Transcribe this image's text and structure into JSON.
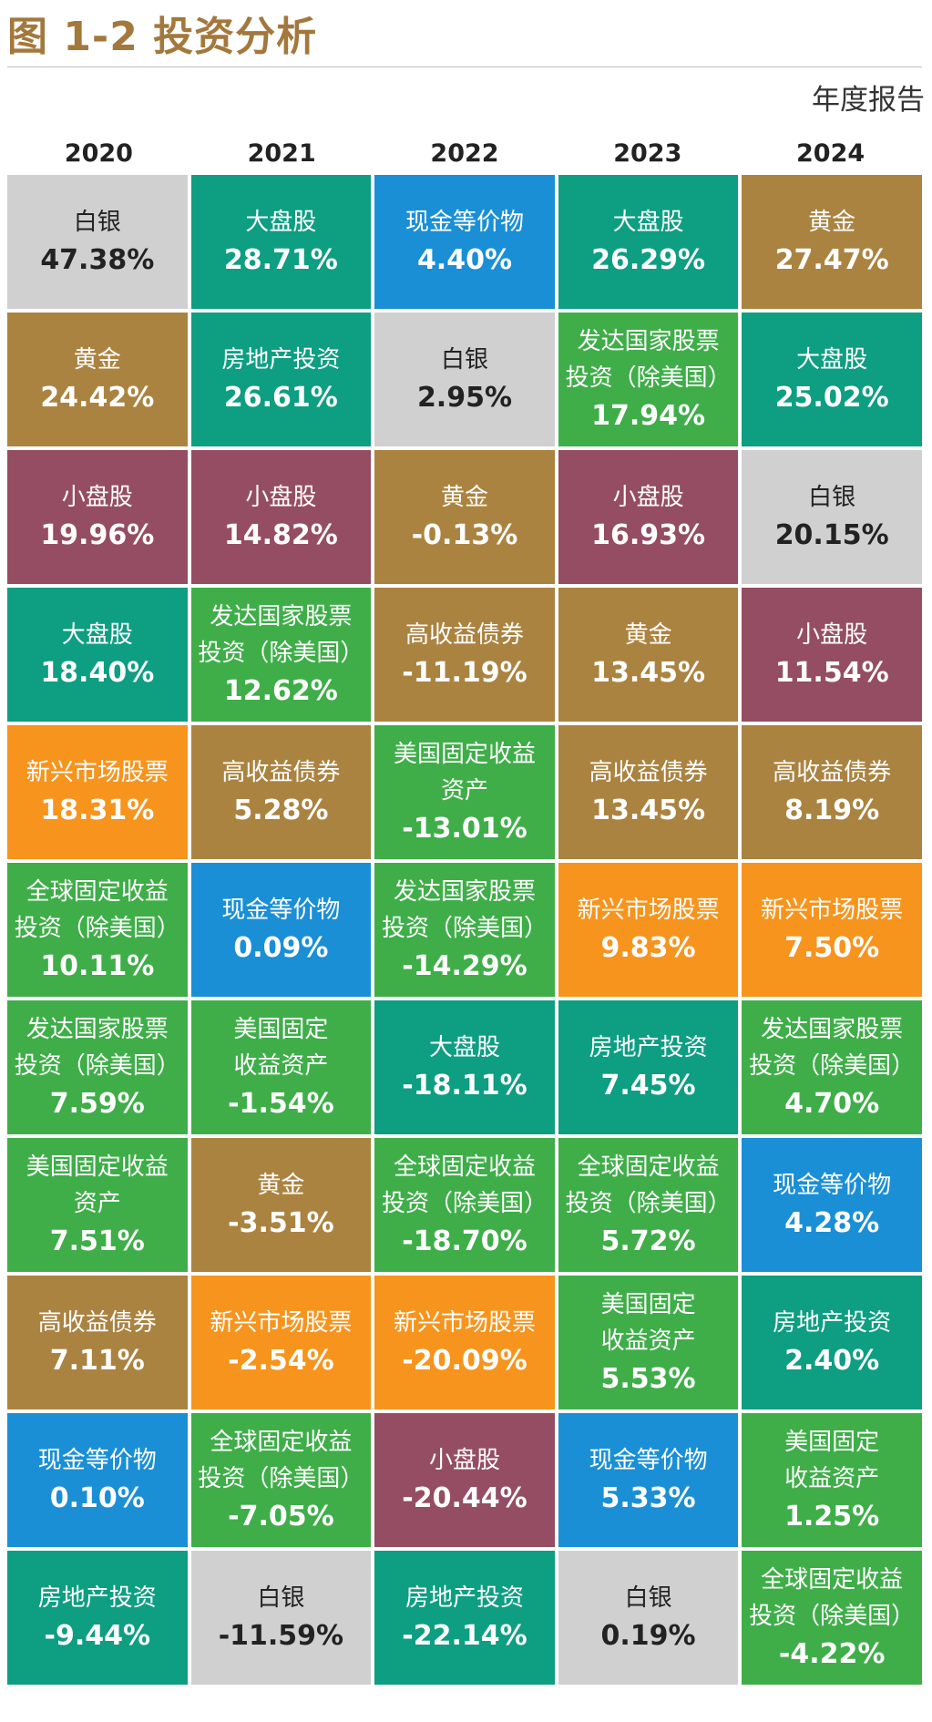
{
  "title": "图 1-2  投资分析",
  "subtitle": "年度报告",
  "colors": {
    "白银": "#d0d0d0",
    "大盘股": "#0e9e82",
    "现金等价物": "#1a8fd6",
    "黄金": "#ab8341",
    "房地产投资": "#0e9e82",
    "发达国家股票投资（除美国）": "#3fae49",
    "小盘股": "#954d64",
    "高收益债券": "#ab8341",
    "新兴市场股票": "#f7941d",
    "美国固定收益资产": "#3fae49",
    "全球固定收益投资（除美国）": "#3fae49"
  },
  "chart_data": {
    "type": "table",
    "columns": [
      {
        "year": "2020",
        "cells": [
          {
            "label": "白银",
            "category": "白银",
            "value": "47.38%"
          },
          {
            "label": "黄金",
            "category": "黄金",
            "value": "24.42%"
          },
          {
            "label": "小盘股",
            "category": "小盘股",
            "value": "19.96%"
          },
          {
            "label": "大盘股",
            "category": "大盘股",
            "value": "18.40%"
          },
          {
            "label": "新兴市场股票",
            "category": "新兴市场股票",
            "value": "18.31%"
          },
          {
            "label": "全球固定收益\n投资（除美国）",
            "category": "全球固定收益投资（除美国）",
            "value": "10.11%"
          },
          {
            "label": "发达国家股票\n投资（除美国）",
            "category": "发达国家股票投资（除美国）",
            "value": "7.59%"
          },
          {
            "label": "美国固定收益\n资产",
            "category": "美国固定收益资产",
            "value": "7.51%"
          },
          {
            "label": "高收益债券",
            "category": "高收益债券",
            "value": "7.11%"
          },
          {
            "label": "现金等价物",
            "category": "现金等价物",
            "value": "0.10%"
          },
          {
            "label": "房地产投资",
            "category": "房地产投资",
            "value": "-9.44%"
          }
        ]
      },
      {
        "year": "2021",
        "cells": [
          {
            "label": "大盘股",
            "category": "大盘股",
            "value": "28.71%"
          },
          {
            "label": "房地产投资",
            "category": "房地产投资",
            "value": "26.61%"
          },
          {
            "label": "小盘股",
            "category": "小盘股",
            "value": "14.82%"
          },
          {
            "label": "发达国家股票\n投资（除美国）",
            "category": "发达国家股票投资（除美国）",
            "value": "12.62%"
          },
          {
            "label": "高收益债券",
            "category": "高收益债券",
            "value": "5.28%"
          },
          {
            "label": "现金等价物",
            "category": "现金等价物",
            "value": "0.09%"
          },
          {
            "label": "美国固定\n收益资产",
            "category": "美国固定收益资产",
            "value": "-1.54%"
          },
          {
            "label": "黄金",
            "category": "黄金",
            "value": "-3.51%"
          },
          {
            "label": "新兴市场股票",
            "category": "新兴市场股票",
            "value": "-2.54%"
          },
          {
            "label": "全球固定收益\n投资（除美国）",
            "category": "全球固定收益投资（除美国）",
            "value": "-7.05%"
          },
          {
            "label": "白银",
            "category": "白银",
            "value": "-11.59%"
          }
        ]
      },
      {
        "year": "2022",
        "cells": [
          {
            "label": "现金等价物",
            "category": "现金等价物",
            "value": "4.40%"
          },
          {
            "label": "白银",
            "category": "白银",
            "value": "2.95%"
          },
          {
            "label": "黄金",
            "category": "黄金",
            "value": "-0.13%"
          },
          {
            "label": "高收益债券",
            "category": "高收益债券",
            "value": "-11.19%"
          },
          {
            "label": "美国固定收益\n资产",
            "category": "美国固定收益资产",
            "value": "-13.01%"
          },
          {
            "label": "发达国家股票\n投资（除美国）",
            "category": "发达国家股票投资（除美国）",
            "value": "-14.29%"
          },
          {
            "label": "大盘股",
            "category": "大盘股",
            "value": "-18.11%"
          },
          {
            "label": "全球固定收益\n投资（除美国）",
            "category": "全球固定收益投资（除美国）",
            "value": "-18.70%"
          },
          {
            "label": "新兴市场股票",
            "category": "新兴市场股票",
            "value": "-20.09%"
          },
          {
            "label": "小盘股",
            "category": "小盘股",
            "value": "-20.44%"
          },
          {
            "label": "房地产投资",
            "category": "房地产投资",
            "value": "-22.14%"
          }
        ]
      },
      {
        "year": "2023",
        "cells": [
          {
            "label": "大盘股",
            "category": "大盘股",
            "value": "26.29%"
          },
          {
            "label": "发达国家股票\n投资（除美国）",
            "category": "发达国家股票投资（除美国）",
            "value": "17.94%"
          },
          {
            "label": "小盘股",
            "category": "小盘股",
            "value": "16.93%"
          },
          {
            "label": "黄金",
            "category": "黄金",
            "value": "13.45%"
          },
          {
            "label": "高收益债券",
            "category": "高收益债券",
            "value": "13.45%"
          },
          {
            "label": "新兴市场股票",
            "category": "新兴市场股票",
            "value": "9.83%"
          },
          {
            "label": "房地产投资",
            "category": "房地产投资",
            "value": "7.45%"
          },
          {
            "label": "全球固定收益\n投资（除美国）",
            "category": "全球固定收益投资（除美国）",
            "value": "5.72%"
          },
          {
            "label": "美国固定\n收益资产",
            "category": "美国固定收益资产",
            "value": "5.53%"
          },
          {
            "label": "现金等价物",
            "category": "现金等价物",
            "value": "5.33%"
          },
          {
            "label": "白银",
            "category": "白银",
            "value": "0.19%"
          }
        ]
      },
      {
        "year": "2024",
        "cells": [
          {
            "label": "黄金",
            "category": "黄金",
            "value": "27.47%"
          },
          {
            "label": "大盘股",
            "category": "大盘股",
            "value": "25.02%"
          },
          {
            "label": "白银",
            "category": "白银",
            "value": "20.15%"
          },
          {
            "label": "小盘股",
            "category": "小盘股",
            "value": "11.54%"
          },
          {
            "label": "高收益债券",
            "category": "高收益债券",
            "value": "8.19%"
          },
          {
            "label": "新兴市场股票",
            "category": "新兴市场股票",
            "value": "7.50%"
          },
          {
            "label": "发达国家股票\n投资（除美国）",
            "category": "发达国家股票投资（除美国）",
            "value": "4.70%"
          },
          {
            "label": "现金等价物",
            "category": "现金等价物",
            "value": "4.28%"
          },
          {
            "label": "房地产投资",
            "category": "房地产投资",
            "value": "2.40%"
          },
          {
            "label": "美国固定\n收益资产",
            "category": "美国固定收益资产",
            "value": "1.25%"
          },
          {
            "label": "全球固定收益\n投资（除美国）",
            "category": "全球固定收益投资（除美国）",
            "value": "-4.22%"
          }
        ]
      }
    ]
  }
}
